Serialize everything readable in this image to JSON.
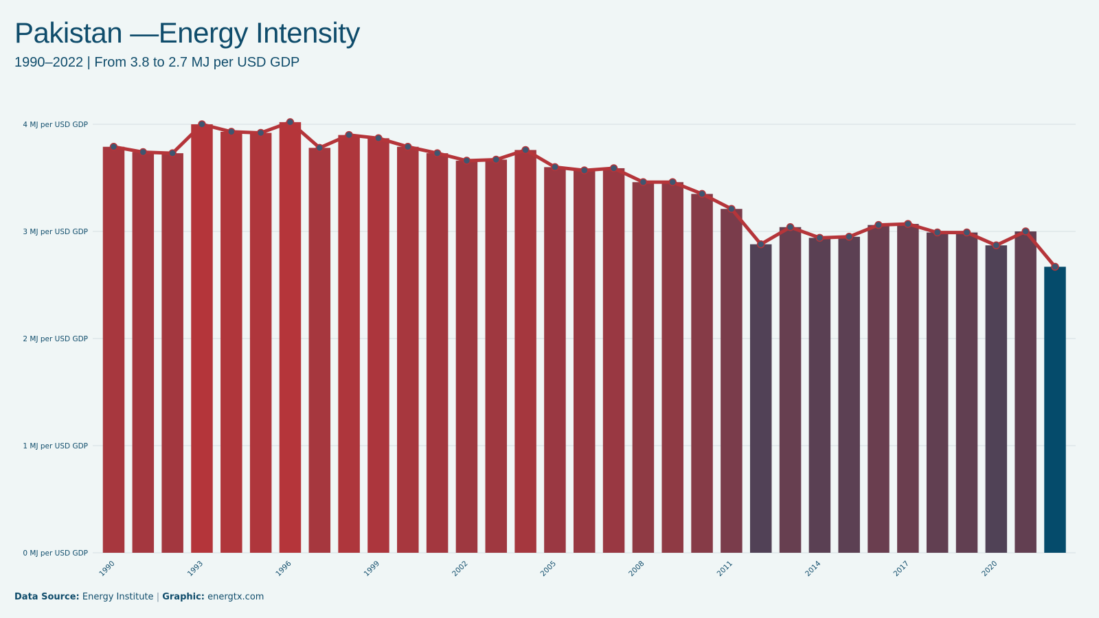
{
  "header": {
    "title": "Pakistan —Energy Intensity",
    "subtitle": "1990–2022 | From 3.8 to 2.7 MJ per USD GDP"
  },
  "footer": {
    "source_label": "Data Source:",
    "source_value": "Energy Institute",
    "separator": "|",
    "graphic_label": "Graphic:",
    "graphic_value": "energtx.com"
  },
  "colors": {
    "background": "#f0f6f6",
    "text": "#0f4c6b",
    "line": "#b5353a",
    "bar_high": "#b5353a",
    "bar_low": "#054b6b",
    "gridline": "#d3dfe1"
  },
  "chart_data": {
    "type": "bar",
    "categories": [
      1990,
      1991,
      1992,
      1993,
      1994,
      1995,
      1996,
      1997,
      1998,
      1999,
      2000,
      2001,
      2002,
      2003,
      2004,
      2005,
      2006,
      2007,
      2008,
      2009,
      2010,
      2011,
      2012,
      2013,
      2014,
      2015,
      2016,
      2017,
      2018,
      2019,
      2020,
      2021,
      2022
    ],
    "values": [
      3.79,
      3.74,
      3.73,
      4.0,
      3.93,
      3.92,
      4.02,
      3.78,
      3.9,
      3.87,
      3.79,
      3.73,
      3.66,
      3.67,
      3.76,
      3.6,
      3.57,
      3.59,
      3.46,
      3.46,
      3.35,
      3.21,
      2.88,
      3.04,
      2.94,
      2.95,
      3.06,
      3.07,
      2.99,
      2.99,
      2.87,
      3.0,
      2.67
    ],
    "overlay_line": true,
    "ylim": [
      0,
      4
    ],
    "yticks": [
      0,
      1,
      2,
      3,
      4
    ],
    "ytick_unit": "MJ per USD GDP",
    "xticks": [
      1990,
      1993,
      1996,
      1999,
      2002,
      2005,
      2008,
      2011,
      2014,
      2017,
      2020
    ],
    "grid": true,
    "legend": "none"
  }
}
